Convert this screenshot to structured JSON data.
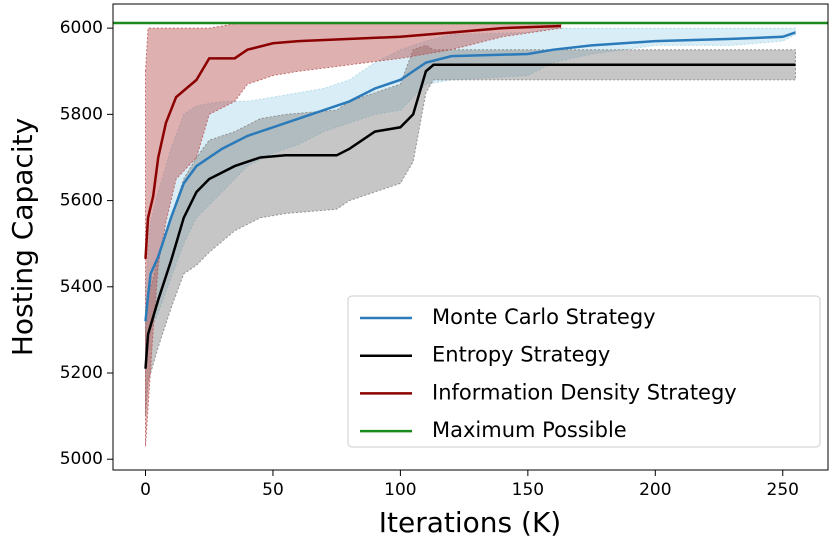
{
  "chart_data": {
    "type": "line",
    "xlabel": "Iterations (K)",
    "ylabel": "Hosting Capacity",
    "xlim": [
      -12.75,
      267.75
    ],
    "ylim": [
      4975,
      6056
    ],
    "xticks": [
      0,
      50,
      100,
      150,
      200,
      250
    ],
    "yticks": [
      5000,
      5200,
      5400,
      5600,
      5800,
      6000
    ],
    "legend": "lower right",
    "series": [
      {
        "name": "Monte Carlo Strategy",
        "color": "#2b7bba",
        "band_color": "#a9d6e8",
        "x": [
          0,
          1,
          2,
          5,
          10,
          15,
          20,
          30,
          40,
          50,
          60,
          70,
          80,
          90,
          100,
          110,
          120,
          150,
          160,
          175,
          200,
          230,
          250,
          255
        ],
        "values": [
          5320,
          5380,
          5430,
          5470,
          5560,
          5640,
          5680,
          5720,
          5750,
          5770,
          5790,
          5810,
          5830,
          5860,
          5880,
          5920,
          5935,
          5940,
          5950,
          5960,
          5970,
          5975,
          5980,
          5990
        ],
        "upper": [
          5400,
          5480,
          5550,
          5620,
          5720,
          5800,
          5820,
          5830,
          5830,
          5840,
          5850,
          5860,
          5880,
          5920,
          5950,
          5970,
          5985,
          5990,
          6000,
          6000,
          6000,
          6000,
          6000,
          6000
        ],
        "lower": [
          5210,
          5260,
          5300,
          5340,
          5420,
          5500,
          5560,
          5620,
          5680,
          5710,
          5730,
          5760,
          5780,
          5800,
          5810,
          5870,
          5880,
          5890,
          5920,
          5940,
          5960,
          5960,
          5970,
          5985
        ]
      },
      {
        "name": "Entropy Strategy",
        "color": "#000000",
        "band_color": "#808080",
        "x": [
          0,
          1,
          3,
          5,
          10,
          15,
          20,
          25,
          35,
          45,
          55,
          75,
          80,
          90,
          100,
          105,
          110,
          113,
          150,
          200,
          255
        ],
        "values": [
          5210,
          5290,
          5330,
          5370,
          5460,
          5560,
          5620,
          5650,
          5680,
          5700,
          5705,
          5705,
          5720,
          5760,
          5770,
          5800,
          5900,
          5915,
          5915,
          5915,
          5915
        ],
        "upper": [
          5300,
          5380,
          5420,
          5470,
          5560,
          5650,
          5700,
          5740,
          5760,
          5790,
          5800,
          5810,
          5830,
          5850,
          5870,
          5950,
          5960,
          5950,
          5950,
          5950,
          5950
        ],
        "lower": [
          5100,
          5180,
          5220,
          5260,
          5350,
          5430,
          5450,
          5480,
          5530,
          5560,
          5570,
          5580,
          5600,
          5620,
          5640,
          5690,
          5850,
          5880,
          5880,
          5880,
          5880
        ]
      },
      {
        "name": "Information Density Strategy",
        "color": "#8b0000",
        "band_color": "#b85050",
        "x": [
          0,
          1,
          3,
          5,
          8,
          12,
          20,
          25,
          35,
          40,
          50,
          60,
          100,
          120,
          140,
          163
        ],
        "values": [
          5465,
          5560,
          5610,
          5700,
          5780,
          5840,
          5880,
          5930,
          5930,
          5950,
          5965,
          5970,
          5980,
          5990,
          6000,
          6005
        ],
        "upper": [
          5900,
          6000,
          6000,
          6000,
          6000,
          6000,
          6000,
          6000,
          6010,
          6010,
          6010,
          6010,
          6010,
          6010,
          6010,
          6010
        ],
        "lower": [
          5030,
          5120,
          5300,
          5450,
          5550,
          5650,
          5700,
          5800,
          5830,
          5870,
          5890,
          5900,
          5930,
          5950,
          5980,
          6000
        ]
      }
    ],
    "hline": {
      "name": "Maximum Possible",
      "color": "#1a8a1a",
      "value": 6012
    }
  }
}
